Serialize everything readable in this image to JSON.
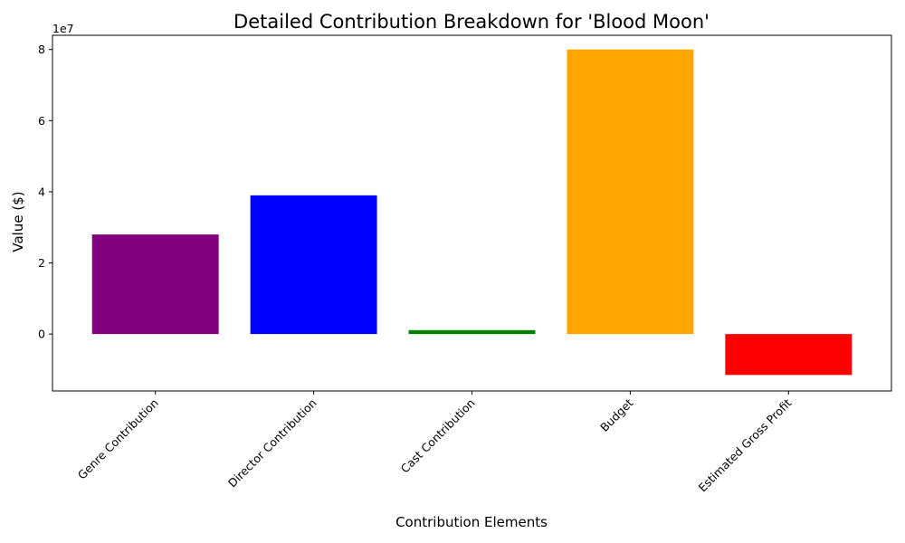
{
  "chart_data": {
    "type": "bar",
    "title": "Detailed Contribution Breakdown for 'Blood Moon'",
    "xlabel": "Contribution Elements",
    "ylabel": "Value ($)",
    "y_offset_label": "1e7",
    "categories": [
      "Genre Contribution",
      "Director Contribution",
      "Cast Contribution",
      "Budget",
      "Estimated Gross Profit"
    ],
    "values": [
      28000000,
      39000000,
      1100000,
      80000000,
      -11500000
    ],
    "colors": [
      "#800080",
      "#0000ff",
      "#008000",
      "#ffa500",
      "#ff0000"
    ],
    "ylim": [
      -16000000,
      84000000
    ],
    "yticks": [
      0,
      20000000,
      40000000,
      60000000,
      80000000
    ],
    "ytick_labels": [
      "0",
      "2",
      "4",
      "6",
      "8"
    ],
    "grid": false,
    "legend": "none"
  }
}
